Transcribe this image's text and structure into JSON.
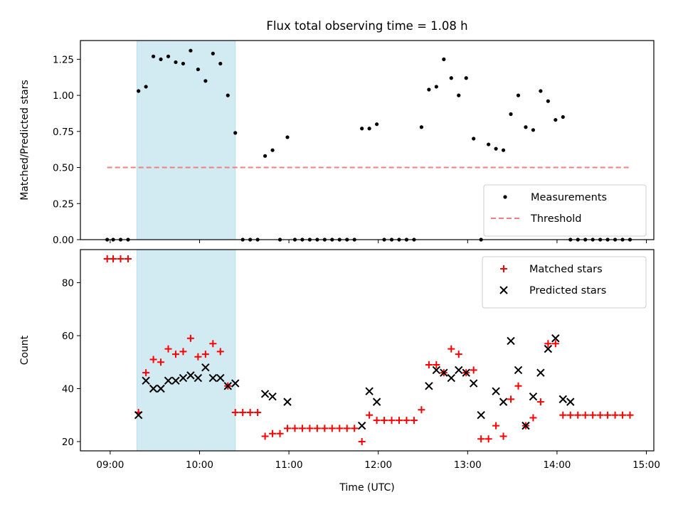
{
  "chart_data": [
    {
      "type": "scatter",
      "title": "Flux total observing time = 1.08 h",
      "xlabel": "",
      "ylabel": "Matched/Predicted stars",
      "xlim": [
        "08:40",
        "15:05"
      ],
      "ylim": [
        0,
        1.38
      ],
      "yticks": [
        "0.00",
        "0.25",
        "0.50",
        "0.75",
        "1.00",
        "1.25"
      ],
      "shaded_interval": [
        "09:18",
        "10:24"
      ],
      "legend_position": "lower right",
      "series": [
        {
          "name": "Measurements",
          "marker": "dot",
          "color": "#000000",
          "x": [
            "08:58",
            "09:02",
            "09:07",
            "09:12",
            "09:19",
            "09:24",
            "09:29",
            "09:34",
            "09:39",
            "09:44",
            "09:49",
            "09:54",
            "09:59",
            "10:04",
            "10:09",
            "10:14",
            "10:19",
            "10:24",
            "10:29",
            "10:34",
            "10:39",
            "10:44",
            "10:49",
            "10:54",
            "10:59",
            "11:04",
            "11:09",
            "11:14",
            "11:19",
            "11:24",
            "11:29",
            "11:34",
            "11:39",
            "11:44",
            "11:49",
            "11:54",
            "11:59",
            "12:04",
            "12:09",
            "12:14",
            "12:19",
            "12:24",
            "12:29",
            "12:34",
            "12:39",
            "12:44",
            "12:49",
            "12:54",
            "12:59",
            "13:04",
            "13:09",
            "13:14",
            "13:19",
            "13:24",
            "13:29",
            "13:34",
            "13:39",
            "13:44",
            "13:49",
            "13:54",
            "13:59",
            "14:04",
            "14:09",
            "14:14",
            "14:19",
            "14:24",
            "14:29",
            "14:34",
            "14:39",
            "14:44",
            "14:49"
          ],
          "y": [
            0,
            0,
            0,
            0,
            1.03,
            1.06,
            1.27,
            1.25,
            1.27,
            1.23,
            1.22,
            1.31,
            1.18,
            1.1,
            1.29,
            1.22,
            1.0,
            0.74,
            0,
            0,
            0,
            0.58,
            0.62,
            0,
            0.71,
            0,
            0,
            0,
            0,
            0,
            0,
            0,
            0,
            0,
            0.77,
            0.77,
            0.8,
            0,
            0,
            0,
            0,
            0,
            0.78,
            1.04,
            1.06,
            1.25,
            1.12,
            1.0,
            1.12,
            0.7,
            0,
            0.66,
            0.63,
            0.62,
            0.87,
            1.0,
            0.78,
            0.76,
            1.03,
            0.96,
            0.83,
            0.85,
            0,
            0,
            0,
            0,
            0,
            0,
            0,
            0,
            0
          ]
        },
        {
          "name": "Threshold",
          "style": "dashed",
          "color": "#f08080",
          "x": [
            "08:58",
            "14:49"
          ],
          "y": [
            0.5,
            0.5
          ]
        }
      ]
    },
    {
      "type": "scatter",
      "title": "",
      "xlabel": "Time (UTC)",
      "ylabel": "Count",
      "xlim": [
        "08:40",
        "15:05"
      ],
      "ylim": [
        16.5,
        92.5
      ],
      "yticks": [
        "20",
        "40",
        "60",
        "80"
      ],
      "xticks": [
        "09:00",
        "10:00",
        "11:00",
        "12:00",
        "13:00",
        "14:00",
        "15:00"
      ],
      "shaded_interval": [
        "09:18",
        "10:24"
      ],
      "legend_position": "upper right",
      "series": [
        {
          "name": "Matched stars",
          "marker": "plus",
          "color": "#ff0000",
          "x": [
            "08:58",
            "09:02",
            "09:07",
            "09:12",
            "09:19",
            "09:24",
            "09:29",
            "09:34",
            "09:39",
            "09:44",
            "09:49",
            "09:54",
            "09:59",
            "10:04",
            "10:09",
            "10:14",
            "10:19",
            "10:24",
            "10:29",
            "10:34",
            "10:39",
            "10:44",
            "10:49",
            "10:54",
            "10:59",
            "11:04",
            "11:09",
            "11:14",
            "11:19",
            "11:24",
            "11:29",
            "11:34",
            "11:39",
            "11:44",
            "11:49",
            "11:54",
            "11:59",
            "12:04",
            "12:09",
            "12:14",
            "12:19",
            "12:24",
            "12:29",
            "12:34",
            "12:39",
            "12:44",
            "12:49",
            "12:54",
            "12:59",
            "13:04",
            "13:09",
            "13:14",
            "13:19",
            "13:24",
            "13:29",
            "13:34",
            "13:39",
            "13:44",
            "13:49",
            "13:54",
            "13:59",
            "14:04",
            "14:09",
            "14:14",
            "14:19",
            "14:24",
            "14:29",
            "14:34",
            "14:39",
            "14:44",
            "14:49"
          ],
          "y": [
            89,
            89,
            89,
            89,
            31,
            46,
            51,
            50,
            55,
            53,
            54,
            59,
            52,
            53,
            57,
            54,
            41,
            31,
            31,
            31,
            31,
            22,
            23,
            23,
            25,
            25,
            25,
            25,
            25,
            25,
            25,
            25,
            25,
            25,
            20,
            30,
            28,
            28,
            28,
            28,
            28,
            28,
            32,
            49,
            49,
            46,
            55,
            53,
            46,
            47,
            21,
            21,
            26,
            22,
            36,
            41,
            26,
            29,
            35,
            57,
            57,
            30,
            30,
            30,
            30,
            30,
            30,
            30,
            30,
            30,
            30
          ]
        },
        {
          "name": "Predicted stars",
          "marker": "x",
          "color": "#000000",
          "x": [
            "09:19",
            "09:24",
            "09:29",
            "09:34",
            "09:39",
            "09:44",
            "09:49",
            "09:54",
            "09:59",
            "10:04",
            "10:09",
            "10:14",
            "10:19",
            "10:24",
            "10:44",
            "10:49",
            "10:59",
            "11:49",
            "11:54",
            "11:59",
            "12:34",
            "12:39",
            "12:44",
            "12:49",
            "12:54",
            "12:59",
            "13:04",
            "13:09",
            "13:19",
            "13:24",
            "13:29",
            "13:34",
            "13:39",
            "13:44",
            "13:49",
            "13:54",
            "13:59",
            "14:04",
            "14:09"
          ],
          "y": [
            30,
            43,
            40,
            40,
            43,
            43,
            44,
            45,
            44,
            48,
            44,
            44,
            41,
            42,
            38,
            37,
            35,
            26,
            39,
            35,
            41,
            47,
            46,
            44,
            47,
            46,
            42,
            30,
            39,
            35,
            58,
            47,
            26,
            37,
            46,
            55,
            59,
            36,
            35
          ]
        }
      ]
    }
  ]
}
